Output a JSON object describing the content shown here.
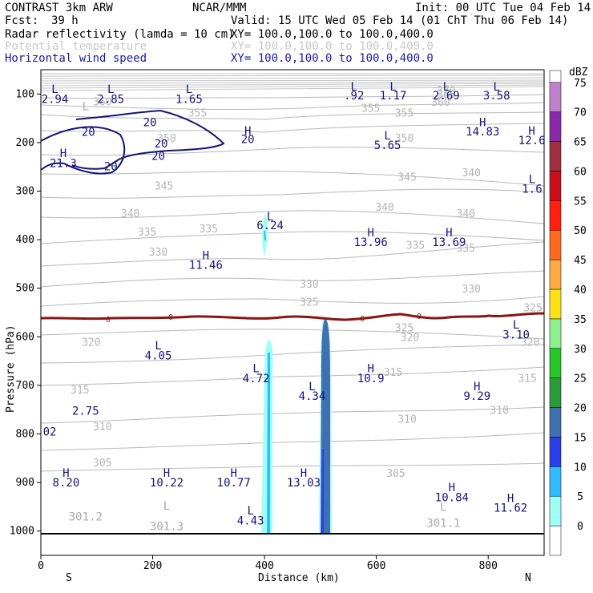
{
  "header": {
    "model": "CONTRAST  3km ARW",
    "fcst_label": "Fcst:",
    "fcst_value": "39 h",
    "center": "NCAR/MMM",
    "init": "Init: 00 UTC Tue 04 Feb 14",
    "valid": "Valid: 15 UTC Wed 05 Feb 14 (01 ChT Thu 06 Feb 14)",
    "field1": "Radar reflectivity (lamda = 10 cm)",
    "field1_xy": "XY= 100.0,100.0 to 100.0,400.0",
    "field2": "Potential temperature",
    "field2_xy": "XY= 100.0,100.0 to 100.0,400.0",
    "field3": "Horizontal wind speed",
    "field3_xy": "XY= 100.0,100.0 to 100.0,400.0"
  },
  "colors": {
    "theta": "#b4b4b4",
    "wind": "#15157a",
    "freezing": "#8b1414",
    "header_blue": "#1a1aa0"
  },
  "chart_data": {
    "type": "cross-section",
    "xlabel": "Distance (km)",
    "ylabel": "Pressure (hPa)",
    "xlim": [
      0,
      900
    ],
    "ylim": [
      1050,
      50
    ],
    "x_ticks": [
      "0",
      "200",
      "400",
      "600",
      "800"
    ],
    "y_ticks": [
      "100",
      "200",
      "300",
      "400",
      "500",
      "600",
      "700",
      "800",
      "900",
      "1000"
    ],
    "x_end_labels": {
      "left": "S",
      "right": "N"
    },
    "colorbar": {
      "unit": "dBZ",
      "levels": [
        "0",
        "5",
        "10",
        "15",
        "20",
        "25",
        "30",
        "35",
        "40",
        "45",
        "50",
        "55",
        "60",
        "65",
        "70",
        "75"
      ],
      "colors": [
        "#ffffff",
        "#9ffff5",
        "#33bbff",
        "#2a3fe8",
        "#4070b0",
        "#2a9b3a",
        "#28c828",
        "#8fef8f",
        "#ffe11a",
        "#ffaa44",
        "#ff6a20",
        "#ff2010",
        "#c8101a",
        "#a03040",
        "#8a2aa8",
        "#c080cc"
      ]
    },
    "reflectivity_cores": [
      {
        "x_km": 404,
        "p_top": 370,
        "p_bottom": 440,
        "dbz": 10
      },
      {
        "x_km": 406,
        "p_top": 608,
        "p_bottom": 1000,
        "dbz": 10
      },
      {
        "x_km": 508,
        "p_top": 565,
        "p_bottom": 1000,
        "dbz": 20
      }
    ],
    "theta_labels": [
      {
        "text": "370",
        "x": 725,
        "p": 94
      },
      {
        "text": "365",
        "x": 725,
        "p": 102
      },
      {
        "text": "360",
        "x": 110,
        "p": 117
      },
      {
        "text": "360",
        "x": 715,
        "p": 118
      },
      {
        "text": "355",
        "x": 280,
        "p": 140
      },
      {
        "text": "355",
        "x": 590,
        "p": 130
      },
      {
        "text": "355",
        "x": 650,
        "p": 140
      },
      {
        "text": "350",
        "x": 225,
        "p": 192
      },
      {
        "text": "350",
        "x": 650,
        "p": 192
      },
      {
        "text": "345",
        "x": 220,
        "p": 290
      },
      {
        "text": "345",
        "x": 655,
        "p": 272
      },
      {
        "text": "340",
        "x": 160,
        "p": 347
      },
      {
        "text": "340",
        "x": 615,
        "p": 334
      },
      {
        "text": "340",
        "x": 770,
        "p": 263
      },
      {
        "text": "340",
        "x": 760,
        "p": 347
      },
      {
        "text": "335",
        "x": 300,
        "p": 378
      },
      {
        "text": "335",
        "x": 190,
        "p": 385
      },
      {
        "text": "335",
        "x": 670,
        "p": 412
      },
      {
        "text": "335",
        "x": 760,
        "p": 418
      },
      {
        "text": "330",
        "x": 210,
        "p": 426
      },
      {
        "text": "330",
        "x": 480,
        "p": 492
      },
      {
        "text": "330",
        "x": 770,
        "p": 502
      },
      {
        "text": "325",
        "x": 480,
        "p": 529
      },
      {
        "text": "325",
        "x": 880,
        "p": 541
      },
      {
        "text": "325",
        "x": 650,
        "p": 582
      },
      {
        "text": "320",
        "x": 90,
        "p": 612
      },
      {
        "text": "320",
        "x": 660,
        "p": 602
      },
      {
        "text": "320",
        "x": 875,
        "p": 612
      },
      {
        "text": "315",
        "x": 630,
        "p": 674
      },
      {
        "text": "315",
        "x": 870,
        "p": 686
      },
      {
        "text": "315",
        "x": 70,
        "p": 710
      },
      {
        "text": "310",
        "x": 110,
        "p": 786
      },
      {
        "text": "310",
        "x": 655,
        "p": 770
      },
      {
        "text": "310",
        "x": 820,
        "p": 752
      },
      {
        "text": "305",
        "x": 110,
        "p": 860
      },
      {
        "text": "305",
        "x": 635,
        "p": 882
      }
    ],
    "theta_hl": [
      {
        "text": "L",
        "x": 80,
        "p": 125
      },
      {
        "text": "301.2",
        "x": 80,
        "p": 970
      },
      {
        "text": "L",
        "x": 225,
        "p": 948
      },
      {
        "text": "301.3",
        "x": 225,
        "p": 990
      },
      {
        "text": "L",
        "x": 720,
        "p": 950
      },
      {
        "text": "301.1",
        "x": 720,
        "p": 983
      }
    ],
    "wind_contour_labels": [
      {
        "text": "20",
        "x": 195,
        "p": 158
      },
      {
        "text": "20",
        "x": 85,
        "p": 178
      },
      {
        "text": "20",
        "x": 215,
        "p": 202
      },
      {
        "text": "20",
        "x": 210,
        "p": 227
      },
      {
        "text": "20",
        "x": 125,
        "p": 249
      }
    ],
    "wind_hl": [
      {
        "text": "L",
        "x": 25,
        "p": 90
      },
      {
        "text": "2.94",
        "x": 25,
        "p": 110
      },
      {
        "text": "L",
        "x": 125,
        "p": 90
      },
      {
        "text": "2.85",
        "x": 125,
        "p": 110
      },
      {
        "text": "L",
        "x": 265,
        "p": 90
      },
      {
        "text": "1.65",
        "x": 265,
        "p": 110
      },
      {
        "text": "L",
        "x": 560,
        "p": 85
      },
      {
        "text": ".92",
        "x": 560,
        "p": 103
      },
      {
        "text": "L",
        "x": 630,
        "p": 85
      },
      {
        "text": "1.17",
        "x": 630,
        "p": 103
      },
      {
        "text": "L",
        "x": 725,
        "p": 85
      },
      {
        "text": "2.69",
        "x": 725,
        "p": 103
      },
      {
        "text": "L",
        "x": 815,
        "p": 85
      },
      {
        "text": "3.58",
        "x": 815,
        "p": 103
      },
      {
        "text": "H",
        "x": 370,
        "p": 175
      },
      {
        "text": "20",
        "x": 370,
        "p": 193
      },
      {
        "text": "H",
        "x": 40,
        "p": 222
      },
      {
        "text": "21.3",
        "x": 40,
        "p": 242
      },
      {
        "text": "L",
        "x": 620,
        "p": 185
      },
      {
        "text": "5.65",
        "x": 620,
        "p": 205
      },
      {
        "text": "H",
        "x": 790,
        "p": 158
      },
      {
        "text": "14.83",
        "x": 790,
        "p": 177
      },
      {
        "text": "H",
        "x": 878,
        "p": 175
      },
      {
        "text": "12.6",
        "x": 878,
        "p": 195
      },
      {
        "text": "L",
        "x": 885,
        "p": 275
      },
      {
        "text": "1.6",
        "x": 885,
        "p": 295
      },
      {
        "text": "L",
        "x": 410,
        "p": 352
      },
      {
        "text": "6.24",
        "x": 410,
        "p": 370
      },
      {
        "text": "H",
        "x": 590,
        "p": 385
      },
      {
        "text": "13.96",
        "x": 590,
        "p": 405
      },
      {
        "text": "H",
        "x": 730,
        "p": 385
      },
      {
        "text": "13.69",
        "x": 730,
        "p": 405
      },
      {
        "text": "H",
        "x": 295,
        "p": 432
      },
      {
        "text": "11.46",
        "x": 295,
        "p": 452
      },
      {
        "text": "L",
        "x": 850,
        "p": 575
      },
      {
        "text": "3.10",
        "x": 850,
        "p": 595
      },
      {
        "text": "L",
        "x": 210,
        "p": 618
      },
      {
        "text": "4.05",
        "x": 210,
        "p": 638
      },
      {
        "text": "L",
        "x": 385,
        "p": 665
      },
      {
        "text": "4.72",
        "x": 385,
        "p": 685
      },
      {
        "text": "H",
        "x": 590,
        "p": 665
      },
      {
        "text": "10.9",
        "x": 590,
        "p": 685
      },
      {
        "text": "L",
        "x": 485,
        "p": 702
      },
      {
        "text": "4.34",
        "x": 485,
        "p": 722
      },
      {
        "text": "H",
        "x": 780,
        "p": 702
      },
      {
        "text": "9.29",
        "x": 780,
        "p": 722
      },
      {
        "text": "2.75",
        "x": 80,
        "p": 752
      },
      {
        "text": "02",
        "x": 15,
        "p": 795
      },
      {
        "text": "H",
        "x": 45,
        "p": 880
      },
      {
        "text": "8.20",
        "x": 45,
        "p": 900
      },
      {
        "text": "H",
        "x": 225,
        "p": 880
      },
      {
        "text": "10.22",
        "x": 225,
        "p": 900
      },
      {
        "text": "H",
        "x": 345,
        "p": 880
      },
      {
        "text": "10.77",
        "x": 345,
        "p": 900
      },
      {
        "text": "H",
        "x": 470,
        "p": 880
      },
      {
        "text": "13.03",
        "x": 470,
        "p": 900
      },
      {
        "text": "H",
        "x": 735,
        "p": 910
      },
      {
        "text": "10.84",
        "x": 735,
        "p": 930
      },
      {
        "text": "H",
        "x": 840,
        "p": 932
      },
      {
        "text": "11.62",
        "x": 840,
        "p": 952
      },
      {
        "text": "L",
        "x": 375,
        "p": 958
      },
      {
        "text": "4.43",
        "x": 375,
        "p": 978
      }
    ],
    "freezing_level_label": "0"
  }
}
